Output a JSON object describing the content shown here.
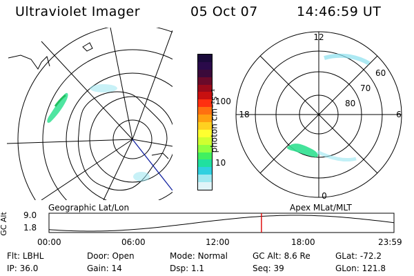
{
  "header": {
    "instrument": "Ultraviolet Imager",
    "date": "05 Oct 07",
    "time": "14:46:59 UT"
  },
  "left_panel": {
    "caption": "Geographic Lat/Lon"
  },
  "right_panel": {
    "caption": "Apex MLat/MLT",
    "mlt_labels": {
      "top": "12",
      "left": "18",
      "right": "6",
      "bottom": "0"
    },
    "lat_labels": [
      "60",
      "70",
      "80"
    ]
  },
  "colorbar": {
    "unit_label": "photon cm⁻²s⁻¹",
    "tick_labels": [
      "100",
      "10"
    ],
    "colors": [
      "#1a0a3a",
      "#2a0a4a",
      "#3a0a3a",
      "#6a0a2a",
      "#9a0a1a",
      "#c81010",
      "#ff3010",
      "#ff7010",
      "#ffa010",
      "#ffd020",
      "#ffff30",
      "#d0ff30",
      "#90ff40",
      "#40f060",
      "#20e0a0",
      "#30d0e0",
      "#a0e8f0",
      "#e0f4f8"
    ]
  },
  "altitude_strip": {
    "label": "GC Alt",
    "y_ticks": [
      "9.0",
      "1.8"
    ],
    "x_ticks": [
      "00:00",
      "06:00",
      "12:00",
      "18:00",
      "23:59"
    ],
    "current_marker_hour": 14.78
  },
  "status": {
    "row1": [
      {
        "key": "Flt:",
        "value": "LBHL"
      },
      {
        "key": "Door:",
        "value": "Open"
      },
      {
        "key": "Mode:",
        "value": "Normal"
      },
      {
        "key": "GC Alt:",
        "value": "8.6 Re"
      },
      {
        "key": "GLat:",
        "value": "-72.2"
      }
    ],
    "row2": [
      {
        "key": "IP:",
        "value": "36.0"
      },
      {
        "key": "Gain:",
        "value": "14"
      },
      {
        "key": "Dsp:",
        "value": "1.1"
      },
      {
        "key": "Seq:",
        "value": "39"
      },
      {
        "key": "GLon:",
        "value": "121.8"
      }
    ]
  }
}
